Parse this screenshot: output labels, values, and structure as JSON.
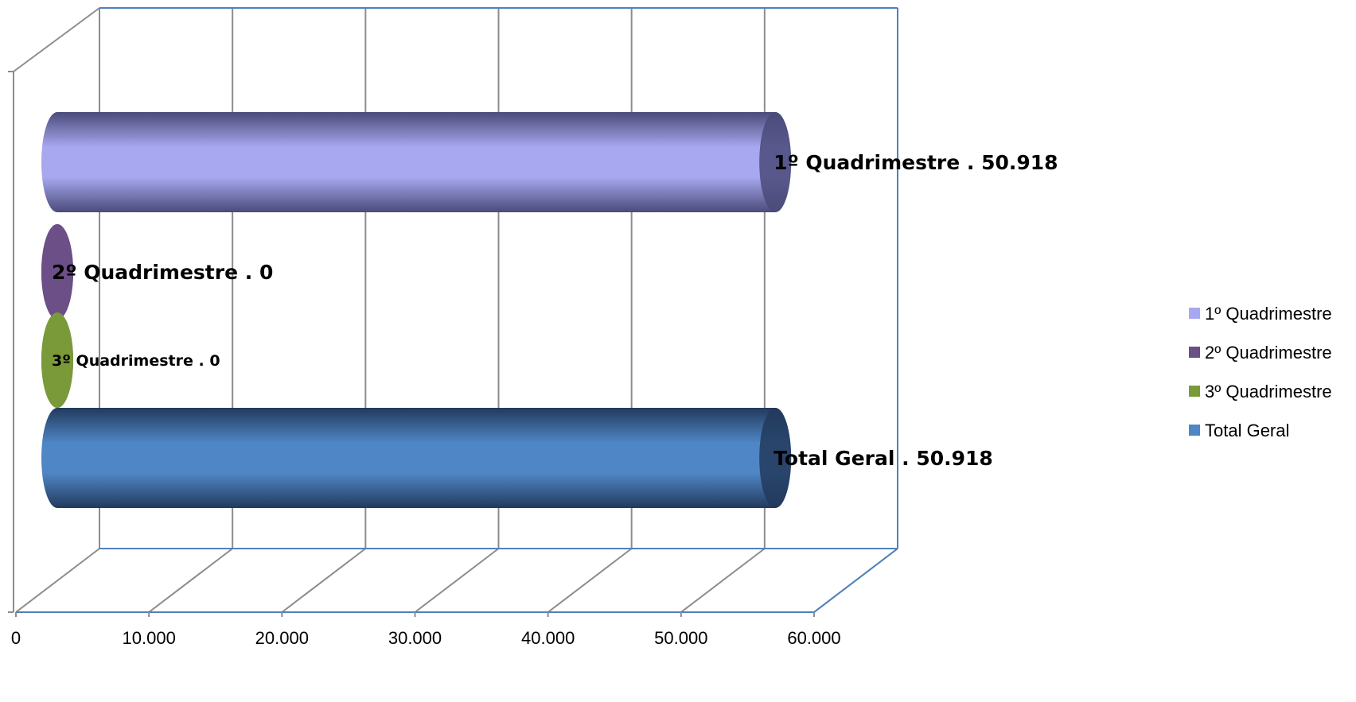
{
  "chart_data": {
    "type": "bar",
    "orientation": "horizontal",
    "style": "3d-cylinder",
    "title": "",
    "xlabel": "",
    "ylabel": "",
    "xlim": [
      0,
      60000
    ],
    "x_ticks": [
      0,
      10000,
      20000,
      30000,
      40000,
      50000,
      60000
    ],
    "x_tick_labels": [
      "0",
      "10.000",
      "20.000",
      "30.000",
      "40.000",
      "50.000",
      "60.000"
    ],
    "grid": true,
    "legend_position": "right",
    "series": [
      {
        "name": "1º Quadrimestre",
        "value": 50918,
        "label": "1º Quadrimestre . 50.918",
        "color": "#a8a8f0",
        "dark": "#4a4a7a",
        "label_size": "large"
      },
      {
        "name": "2º Quadrimestre",
        "value": 0,
        "label": "2º Quadrimestre . 0",
        "color": "#6b4f86",
        "dark": "#3f2f55",
        "label_size": "large"
      },
      {
        "name": "3º Quadrimestre",
        "value": 0,
        "label": "3º Quadrimestre . 0",
        "color": "#7a9a3a",
        "dark": "#4d6122",
        "label_size": "small"
      },
      {
        "name": "Total  Geral",
        "value": 50918,
        "label": "Total  Geral . 50.918",
        "color": "#4f86c6",
        "dark": "#223a5c",
        "label_size": "large"
      }
    ]
  }
}
